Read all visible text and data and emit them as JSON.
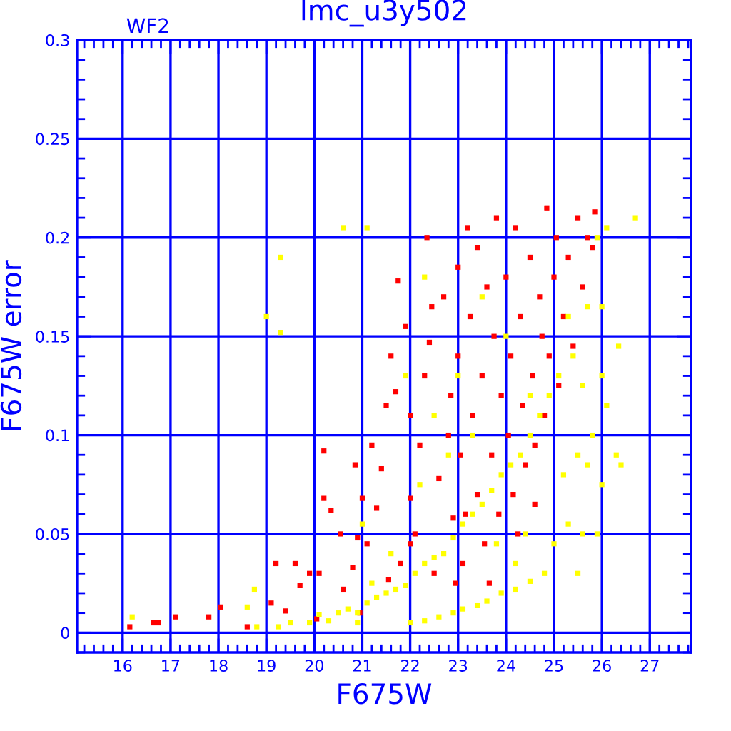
{
  "chart_data": {
    "type": "scatter",
    "title": "lmc_u3y502",
    "xlabel": "F675W",
    "ylabel": "F675W error",
    "annotations": [
      "WF2"
    ],
    "xlim": [
      15.05,
      27.86
    ],
    "ylim": [
      -0.01,
      0.3
    ],
    "xticks": [
      16,
      17,
      18,
      19,
      20,
      21,
      22,
      23,
      24,
      25,
      26,
      27
    ],
    "yticks": [
      0,
      0.05,
      0.1,
      0.15,
      0.2,
      0.25,
      0.3
    ],
    "grid": true,
    "marker": "square",
    "series": [
      {
        "color": "#ff0000",
        "x": [
          16.15,
          16.65,
          16.75,
          17.1,
          17.8,
          18.05,
          18.6,
          19.1,
          19.2,
          19.4,
          19.6,
          19.7,
          19.9,
          20.05,
          20.1,
          20.2,
          20.2,
          20.35,
          20.55,
          20.6,
          20.8,
          20.85,
          20.9,
          20.95,
          21.0,
          21.1,
          21.2,
          21.3,
          21.4,
          21.5,
          21.6,
          21.7,
          21.75,
          21.8,
          21.9,
          22.0,
          22.0,
          22.1,
          22.2,
          22.3,
          22.35,
          22.4,
          22.5,
          22.6,
          22.7,
          22.8,
          22.85,
          22.9,
          23.0,
          23.0,
          23.05,
          23.1,
          23.2,
          23.25,
          23.3,
          23.4,
          23.4,
          23.5,
          23.55,
          23.6,
          23.7,
          23.75,
          23.8,
          23.85,
          23.9,
          24.0,
          24.05,
          24.1,
          24.15,
          24.2,
          24.3,
          24.35,
          24.4,
          24.5,
          24.55,
          24.6,
          24.7,
          24.75,
          24.8,
          24.85,
          24.9,
          25.0,
          25.05,
          25.1,
          25.2,
          25.3,
          25.4,
          25.5,
          25.6,
          25.7,
          25.8,
          25.85,
          22.45,
          23.15,
          23.65,
          22.95,
          24.25,
          24.6,
          21.55,
          22.0
        ],
        "values": [
          0.003,
          0.005,
          0.005,
          0.008,
          0.008,
          0.013,
          0.003,
          0.015,
          0.035,
          0.011,
          0.035,
          0.024,
          0.03,
          0.007,
          0.03,
          0.092,
          0.068,
          0.062,
          0.05,
          0.022,
          0.033,
          0.085,
          0.048,
          0.01,
          0.068,
          0.045,
          0.095,
          0.063,
          0.083,
          0.115,
          0.14,
          0.122,
          0.178,
          0.035,
          0.155,
          0.11,
          0.068,
          0.05,
          0.095,
          0.13,
          0.2,
          0.147,
          0.03,
          0.078,
          0.17,
          0.1,
          0.12,
          0.058,
          0.185,
          0.14,
          0.09,
          0.035,
          0.205,
          0.16,
          0.11,
          0.07,
          0.195,
          0.13,
          0.045,
          0.175,
          0.09,
          0.15,
          0.21,
          0.06,
          0.12,
          0.18,
          0.1,
          0.14,
          0.07,
          0.205,
          0.16,
          0.115,
          0.085,
          0.19,
          0.13,
          0.095,
          0.17,
          0.15,
          0.11,
          0.215,
          0.14,
          0.18,
          0.2,
          0.125,
          0.16,
          0.19,
          0.145,
          0.21,
          0.175,
          0.2,
          0.195,
          0.213,
          0.165,
          0.06,
          0.025,
          0.025,
          0.05,
          0.065,
          0.027,
          0.045
        ]
      },
      {
        "color": "#ffff00",
        "x": [
          16.2,
          18.6,
          18.75,
          18.8,
          19.25,
          19.5,
          19.9,
          20.1,
          20.3,
          20.5,
          20.7,
          20.9,
          21.1,
          21.3,
          21.5,
          21.7,
          21.9,
          22.1,
          22.3,
          22.5,
          22.7,
          22.9,
          23.1,
          23.3,
          23.5,
          23.7,
          23.9,
          24.1,
          24.3,
          24.5,
          24.7,
          24.9,
          22.0,
          22.3,
          22.6,
          22.9,
          23.1,
          23.4,
          23.6,
          23.9,
          24.2,
          24.5,
          24.8,
          25.0,
          24.4,
          25.3,
          25.6,
          25.9,
          25.2,
          25.5,
          25.7,
          26.0,
          26.3,
          26.4,
          25.8,
          26.1,
          25.1,
          25.4,
          25.6,
          26.0,
          26.35,
          25.3,
          25.7,
          26.0,
          25.9,
          26.7,
          26.1,
          20.6,
          19.3,
          19.0,
          19.3,
          21.1,
          22.3,
          23.5,
          24.0,
          24.5,
          23.0,
          22.5,
          21.9,
          23.3,
          22.2,
          21.6,
          21.2,
          20.9,
          23.8,
          24.2,
          25.5,
          21.0,
          22.8
        ],
        "values": [
          0.008,
          0.013,
          0.022,
          0.003,
          0.003,
          0.005,
          0.005,
          0.009,
          0.006,
          0.01,
          0.012,
          0.01,
          0.015,
          0.018,
          0.02,
          0.022,
          0.024,
          0.03,
          0.035,
          0.038,
          0.04,
          0.048,
          0.055,
          0.06,
          0.065,
          0.072,
          0.08,
          0.085,
          0.09,
          0.1,
          0.11,
          0.12,
          0.005,
          0.006,
          0.008,
          0.01,
          0.012,
          0.014,
          0.016,
          0.02,
          0.022,
          0.026,
          0.03,
          0.045,
          0.05,
          0.055,
          0.05,
          0.05,
          0.08,
          0.09,
          0.085,
          0.075,
          0.09,
          0.085,
          0.1,
          0.115,
          0.13,
          0.14,
          0.125,
          0.13,
          0.145,
          0.16,
          0.165,
          0.165,
          0.2,
          0.21,
          0.205,
          0.205,
          0.19,
          0.16,
          0.152,
          0.205,
          0.18,
          0.17,
          0.15,
          0.12,
          0.13,
          0.11,
          0.13,
          0.1,
          0.075,
          0.04,
          0.025,
          0.005,
          0.045,
          0.035,
          0.03,
          0.055,
          0.09
        ]
      }
    ]
  }
}
